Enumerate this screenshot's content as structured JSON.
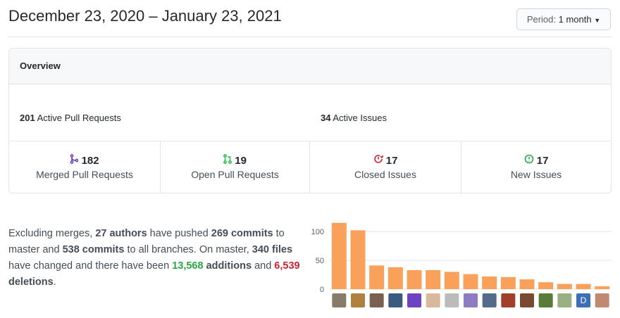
{
  "header": {
    "title": "December 23, 2020 – January 23, 2021",
    "period_label": "Period:",
    "period_value": "1 month"
  },
  "overview": {
    "title": "Overview",
    "pull_requests": {
      "count": 201,
      "label": "Active Pull Requests",
      "segments": [
        {
          "name": "Merged Pull Requests",
          "value": 182,
          "color": "#6f42c1"
        },
        {
          "name": "Open Pull Requests",
          "value": 19,
          "color": "#2cbe4e"
        }
      ]
    },
    "issues": {
      "count": 34,
      "label": "Active Issues",
      "segments": [
        {
          "name": "Closed Issues",
          "value": 17,
          "color": "#cb2431"
        },
        {
          "name": "New Issues",
          "value": 17,
          "color": "#2cbe4e"
        }
      ]
    }
  },
  "summary": [
    {
      "text": "Excluding merges, ",
      "style": "plain"
    },
    {
      "text": "27 authors",
      "style": "bold"
    },
    {
      "text": " have pushed ",
      "style": "plain"
    },
    {
      "text": "269 commits",
      "style": "bold"
    },
    {
      "text": " to master and ",
      "style": "plain"
    },
    {
      "text": "538 commits",
      "style": "bold"
    },
    {
      "text": " to all branches. On master, ",
      "style": "plain"
    },
    {
      "text": "340 files",
      "style": "bold"
    },
    {
      "text": " have changed and there have been ",
      "style": "plain"
    },
    {
      "text": "13,568",
      "style": "green"
    },
    {
      "text": " additions",
      "style": "bold"
    },
    {
      "text": " and ",
      "style": "plain"
    },
    {
      "text": "6,539",
      "style": "red"
    },
    {
      "text": " deletions",
      "style": "bold"
    },
    {
      "text": ".",
      "style": "plain"
    }
  ],
  "chart_data": {
    "type": "bar",
    "categories": [
      null,
      null,
      null,
      null,
      null,
      null,
      null,
      null,
      null,
      null,
      null,
      null,
      null,
      "D",
      null
    ],
    "values": [
      115,
      102,
      41,
      38,
      33,
      33,
      30,
      26,
      22,
      21,
      17,
      12,
      9,
      9,
      5
    ],
    "color": "#f9a05b",
    "ylim": [
      0,
      120
    ],
    "yticks": [
      0,
      50,
      100
    ],
    "grid": true
  }
}
